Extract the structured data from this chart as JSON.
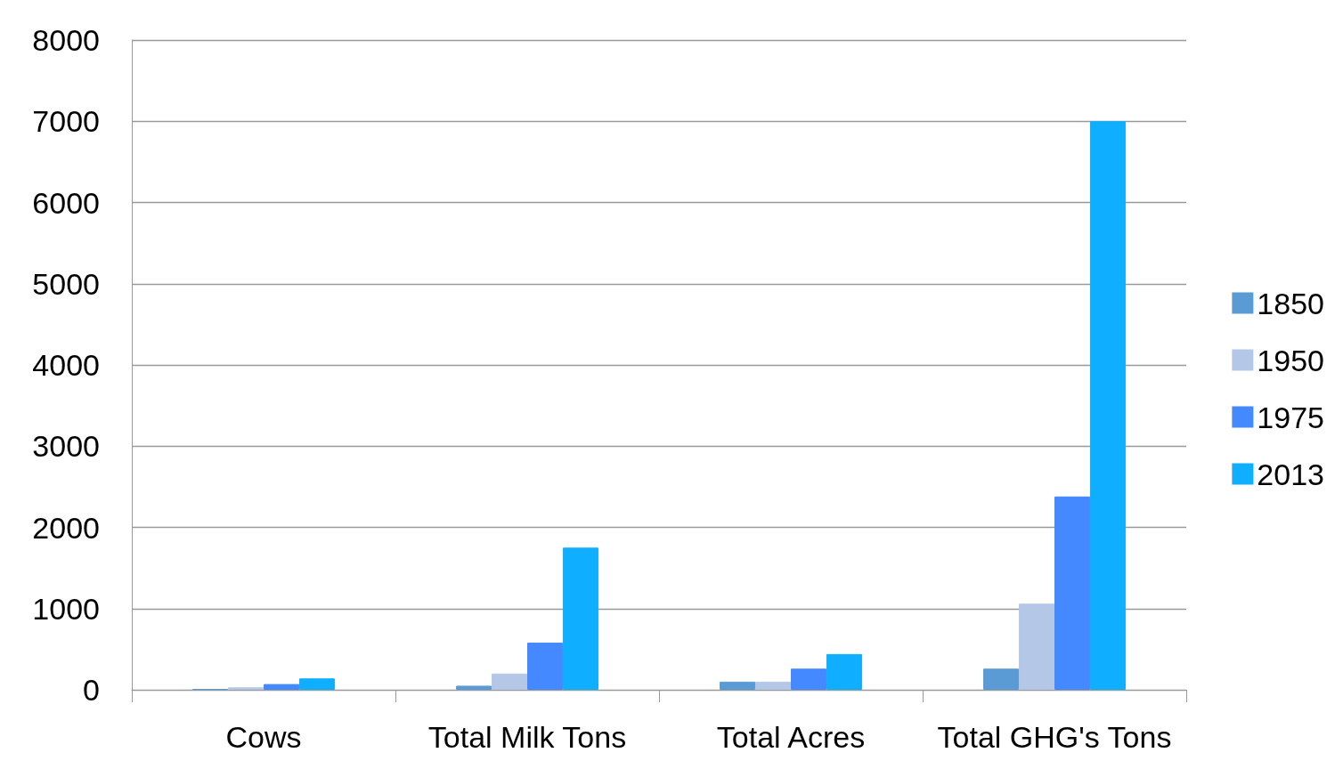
{
  "chart_data": {
    "type": "bar",
    "categories": [
      "Cows",
      "Total Milk Tons",
      "Total Acres",
      "Total GHG's Tons"
    ],
    "series": [
      {
        "name": "1850",
        "color": "#5b9bd5",
        "values": [
          10,
          50,
          100,
          260
        ]
      },
      {
        "name": "1950",
        "color": "#b4c7e7",
        "values": [
          30,
          200,
          100,
          1060
        ]
      },
      {
        "name": "1975",
        "color": "#4489ff",
        "values": [
          70,
          580,
          260,
          2380
        ]
      },
      {
        "name": "2013",
        "color": "#10aeff",
        "values": [
          140,
          1750,
          440,
          7000
        ]
      }
    ],
    "ylim": [
      0,
      8000
    ],
    "yticks": [
      0,
      1000,
      2000,
      3000,
      4000,
      5000,
      6000,
      7000,
      8000
    ],
    "grid": "y",
    "legend": "right"
  }
}
